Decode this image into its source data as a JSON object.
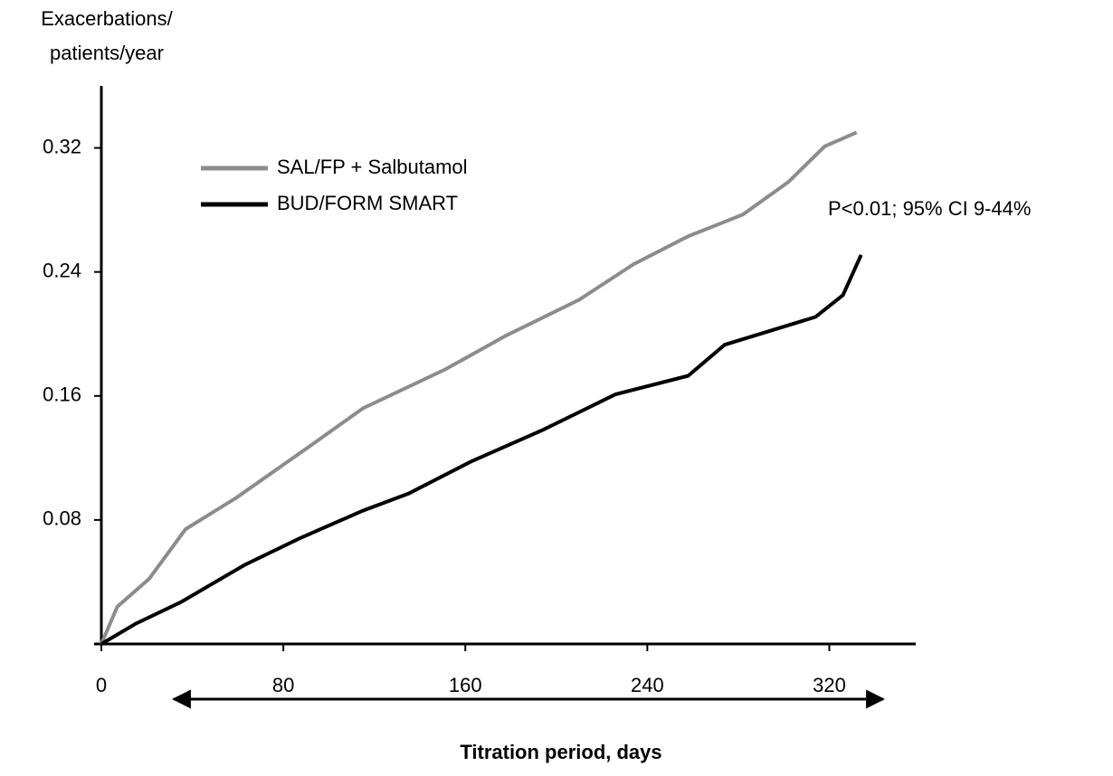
{
  "chart_data": {
    "type": "line",
    "ylabel": [
      "Exacerbations/",
      "patients/year"
    ],
    "xlabel": "Titration period, days",
    "annotation": "P<0.01; 95% CI 9-44%",
    "xlim": [
      0,
      358
    ],
    "xticks": [
      0,
      80,
      160,
      240,
      320
    ],
    "ylim": [
      0,
      0.36
    ],
    "yticks": [
      0.08,
      0.16,
      0.24,
      0.32
    ],
    "legend": "upper left",
    "series": [
      {
        "name": "SAL/FP + Salbutamol",
        "color": "#8c8c8c",
        "x": [
          0,
          7,
          21,
          37,
          59,
          93,
          115,
          151,
          178,
          210,
          234,
          258,
          282,
          302,
          318,
          332
        ],
        "values": [
          0,
          0.024,
          0.042,
          0.074,
          0.094,
          0.129,
          0.152,
          0.177,
          0.199,
          0.222,
          0.245,
          0.263,
          0.277,
          0.298,
          0.321,
          0.33
        ]
      },
      {
        "name": "BUD/FORM SMART",
        "color": "#000000",
        "x": [
          0,
          15,
          35,
          63,
          87,
          115,
          135,
          163,
          194,
          226,
          258,
          274,
          314,
          326,
          334
        ],
        "values": [
          0,
          0.013,
          0.027,
          0.051,
          0.068,
          0.086,
          0.097,
          0.118,
          0.138,
          0.161,
          0.173,
          0.193,
          0.211,
          0.225,
          0.251
        ]
      }
    ]
  }
}
